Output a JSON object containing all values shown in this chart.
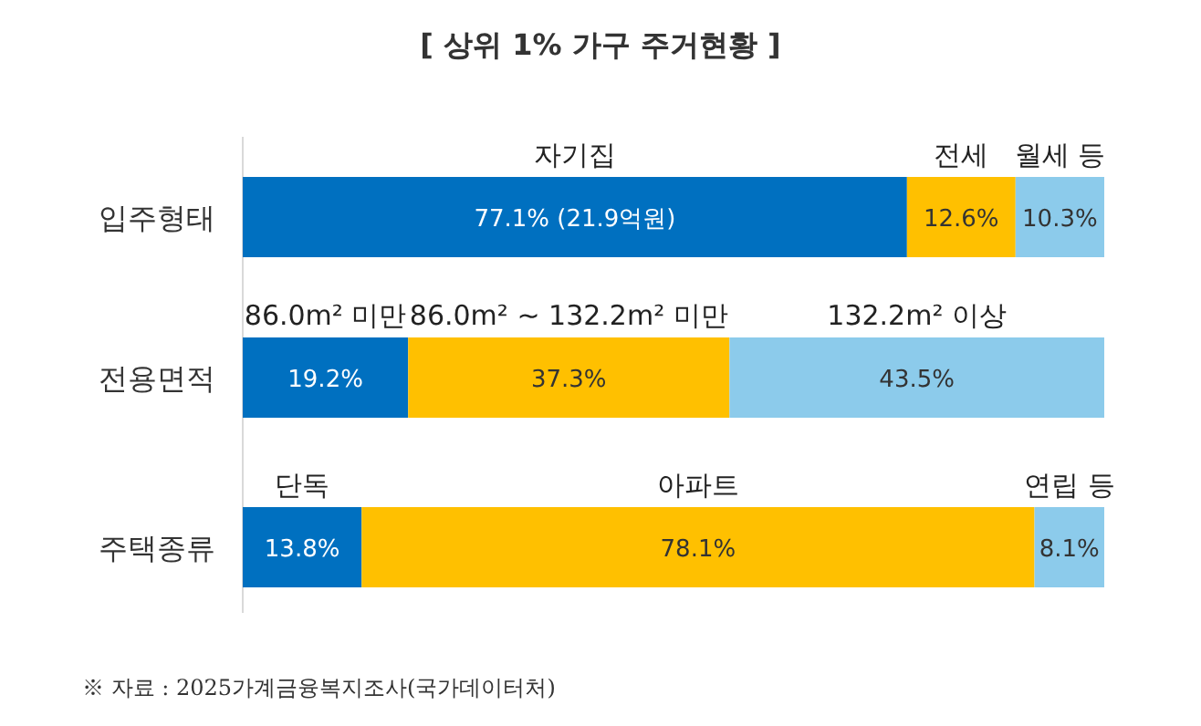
{
  "chart_data": {
    "type": "bar",
    "orientation": "horizontal",
    "stacked": true,
    "title": "[ 상위 1% 가구 주거현황 ]",
    "categories": [
      "입주형태",
      "전용면적",
      "주택종류"
    ],
    "xlim": [
      0,
      100
    ],
    "tick_labels": "y",
    "series": [
      {
        "color": "#0070c0",
        "values": [
          77.1,
          19.2,
          13.8
        ],
        "value_labels": [
          "77.1% (21.9억원)",
          "19.2%",
          "13.8%"
        ]
      },
      {
        "color": "#ffc000",
        "values": [
          12.6,
          37.3,
          78.1
        ],
        "value_labels": [
          "12.6%",
          "37.3%",
          "78.1%"
        ]
      },
      {
        "color": "#8ccbeb",
        "values": [
          10.3,
          43.5,
          8.1
        ],
        "value_labels": [
          "10.3%",
          "43.5%",
          "8.1%"
        ]
      }
    ],
    "annotations": [
      "자기집",
      "전세",
      "월세 등",
      "86.0m² 미만",
      "86.0m² ~ 132.2m² 미만",
      "132.2m² 이상",
      "단독",
      "아파트",
      "연립 등",
      "※ 자료 : 2025가계금융복지조사(국가데이터처)"
    ]
  }
}
